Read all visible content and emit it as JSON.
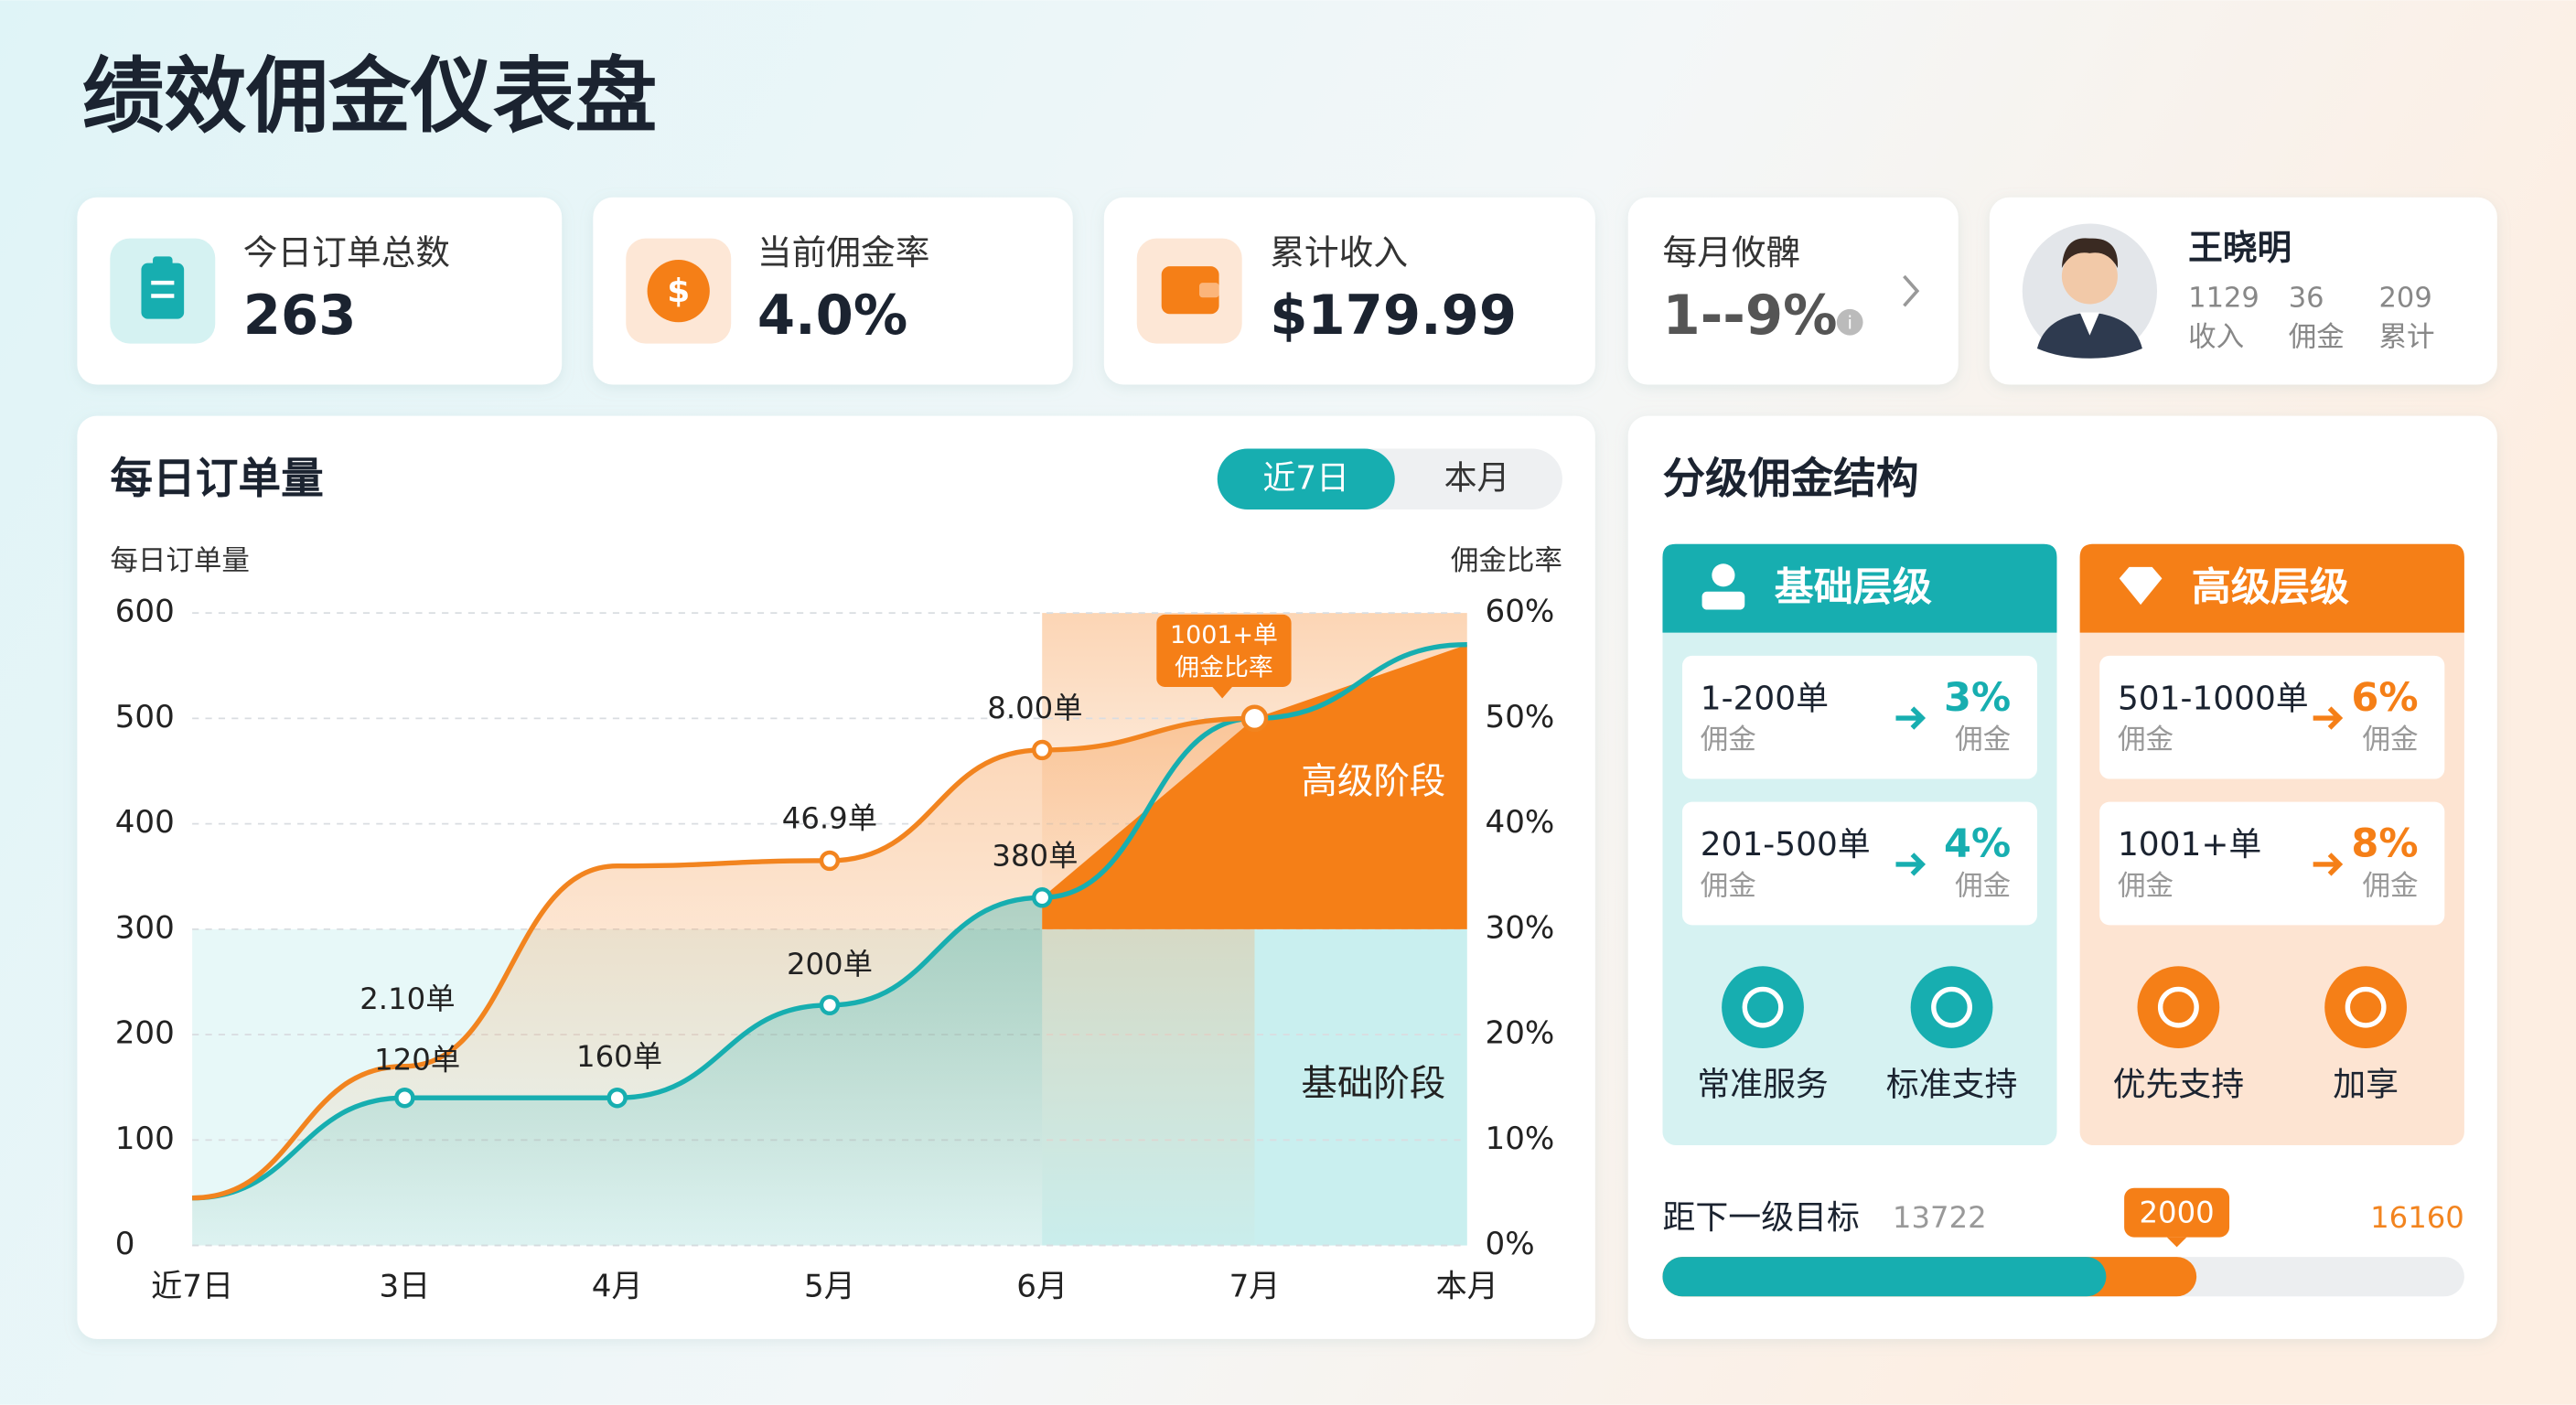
{
  "header": {
    "title": "绩效佣金仪表盘"
  },
  "kpis": [
    {
      "label": "今日订单总数",
      "value": "263"
    },
    {
      "label": "当前佣金率",
      "value": "4.0%"
    },
    {
      "label": "累计收入",
      "value": "$179.99"
    },
    {
      "label": "每月攸髀",
      "value": "1--9%"
    }
  ],
  "profile": {
    "name": "王晓明",
    "stats": [
      {
        "value": "1129",
        "label": "收入"
      },
      {
        "value": "36",
        "label": "佣金"
      },
      {
        "value": "209",
        "label": "累计"
      }
    ]
  },
  "chart_data": {
    "type": "line",
    "title": "每日订单量",
    "tabs": [
      "近7日",
      "本月"
    ],
    "y_label": "每日订单量",
    "y2_label": "佣金比率",
    "categories": [
      "近7日",
      "3日",
      "4月",
      "5月",
      "6月",
      "7月",
      "本月"
    ],
    "ylim": [
      0,
      600
    ],
    "yticks": [
      0,
      100,
      200,
      300,
      400,
      500,
      600
    ],
    "y2lim": [
      0,
      60
    ],
    "y2ticks": [
      {
        "value": 0,
        "label": "0%"
      },
      {
        "value": 10,
        "label": "10%"
      },
      {
        "value": 20,
        "label": "20%"
      },
      {
        "value": 30,
        "label": "30%"
      },
      {
        "value": 40,
        "label": "40%"
      },
      {
        "value": 50,
        "label": "50%"
      },
      {
        "value": 60,
        "label": "60%"
      }
    ],
    "grid": true,
    "series": [
      {
        "color": "#17aeb0",
        "values": [
          45,
          140,
          140,
          228,
          330,
          500,
          570
        ]
      },
      {
        "color": "#f2841f",
        "axis": "y2",
        "values": [
          4.5,
          17,
          36,
          36.5,
          47,
          50,
          null
        ]
      }
    ],
    "zones": [
      {
        "label": "基础阶段",
        "from": 0,
        "to": 300,
        "color": "#c9efef"
      },
      {
        "label": "高级阶段",
        "from": 300,
        "to": 600,
        "color": "#f57f17"
      }
    ],
    "callout": [
      "1001+单",
      "佣金比率"
    ],
    "annotations": [
      "2.10单",
      "120单",
      "160单",
      "46.9单",
      "200单",
      "8.00单",
      "380单"
    ]
  },
  "tiers": {
    "title": "分级佣金结构",
    "levels": [
      {
        "name": "基础层级",
        "rules": [
          {
            "range": "1-200单",
            "sub": "佣金",
            "rate": "3%",
            "rate_sub": "佣金"
          },
          {
            "range": "201-500单",
            "sub": "佣金",
            "rate": "4%",
            "rate_sub": "佣金"
          }
        ],
        "perks": [
          "常准服务",
          "标准支持"
        ]
      },
      {
        "name": "高级层级",
        "rules": [
          {
            "range": "501-1000单",
            "sub": "佣金",
            "rate": "6%",
            "rate_sub": "佣金"
          },
          {
            "range": "1001+单",
            "sub": "佣金",
            "rate": "8%",
            "rate_sub": "佣金"
          }
        ],
        "perks": [
          "优先支持",
          "加享"
        ]
      }
    ]
  },
  "progress": {
    "label": "距下一级目标",
    "current": "13722",
    "marker": "2000",
    "target": "16160"
  }
}
